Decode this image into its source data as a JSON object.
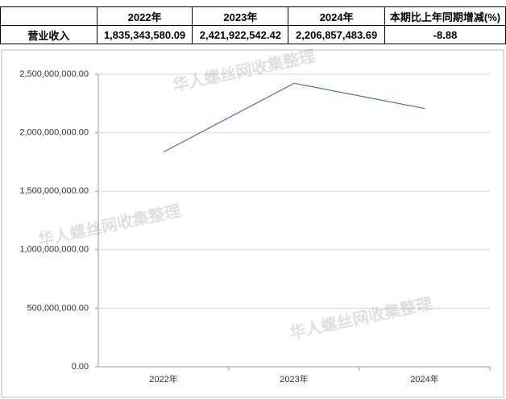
{
  "table": {
    "header": [
      "",
      "2022年",
      "2023年",
      "2024年",
      "本期比上年同期增减(%)"
    ],
    "rows": [
      [
        "营业收入",
        "1,835,343,580.09",
        "2,421,922,542.42",
        "2,206,857,483.69",
        "-8.88"
      ]
    ]
  },
  "chart_data": {
    "type": "line",
    "categories": [
      "2022年",
      "2023年",
      "2024年"
    ],
    "values": [
      1835343580.09,
      2421922542.42,
      2206857483.69
    ],
    "color": "#4a72b8",
    "ylim": [
      0,
      2500000000
    ],
    "yticks": [
      {
        "value": 0,
        "label": "0.00"
      },
      {
        "value": 500000000,
        "label": "500,000,000.00"
      },
      {
        "value": 1000000000,
        "label": "1,000,000,000.00"
      },
      {
        "value": 1500000000,
        "label": "1,500,000,000.00"
      },
      {
        "value": 2000000000,
        "label": "2,000,000,000.00"
      },
      {
        "value": 2500000000,
        "label": "2,500,000,000.00"
      }
    ],
    "grid": true
  },
  "watermarks": [
    "华人螺丝网收集整理",
    "华人螺丝网收集整理",
    "华人螺丝网收集整理"
  ]
}
